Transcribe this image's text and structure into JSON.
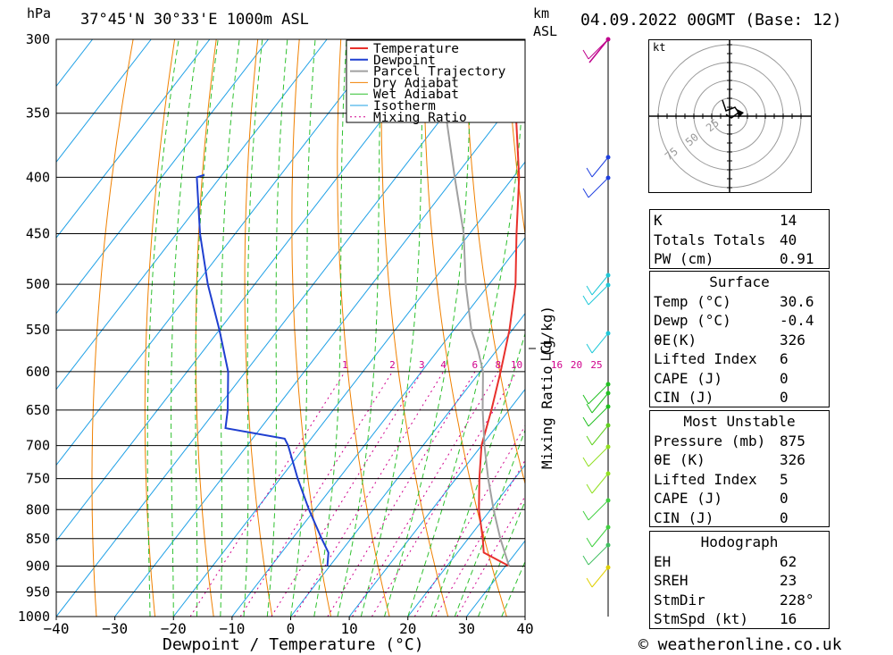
{
  "header": {
    "pressure_unit": "hPa",
    "location": "37°45'N  30°33'E  1000m  ASL",
    "km_label": "km",
    "asl_label": "ASL",
    "datetime": "04.09.2022  00GMT  (Base: 12)"
  },
  "footer": {
    "credit": "© weatheronline.co.uk"
  },
  "colors": {
    "temperature": "#e8302c",
    "dewpoint": "#1f3fd0",
    "parcel": "#a0a0a0",
    "dry_adiabat": "#f08000",
    "wet_adiabat": "#2ec02e",
    "isotherm": "#1ea0e6",
    "mixing_ratio": "#d0008c"
  },
  "chart_data": {
    "type": "line",
    "title": "",
    "xlabel": "Dewpoint / Temperature (°C)",
    "ylabel": "hPa",
    "right_label": "Mixing Ratio (g/kg)",
    "xlim": [
      -40,
      40
    ],
    "ylim": [
      1000,
      300
    ],
    "x_ticks": [
      -40,
      -30,
      -20,
      -10,
      0,
      10,
      20,
      30,
      40
    ],
    "pressure_levels": [
      300,
      350,
      400,
      450,
      500,
      550,
      600,
      650,
      700,
      750,
      800,
      850,
      900,
      950,
      1000
    ],
    "skew": "skew-T log-p",
    "legend": [
      "Temperature",
      "Dewpoint",
      "Parcel Trajectory",
      "Dry Adiabat",
      "Wet Adiabat",
      "Isotherm",
      "Mixing Ratio"
    ],
    "legend_position": "top-right",
    "mixing_ratio_labels": [
      "1",
      "2",
      "3",
      "4",
      "6",
      "8",
      "10",
      "16",
      "20",
      "25"
    ],
    "lcl_label": "LCL",
    "lcl_pressure": 575,
    "series": [
      {
        "name": "Temperature",
        "pressure": [
          900,
          875,
          850,
          800,
          750,
          700,
          650,
          600,
          550,
          500,
          450,
          400,
          350,
          300
        ],
        "values": [
          30.6,
          24.5,
          22.5,
          18,
          14,
          10,
          7,
          3.5,
          -0.5,
          -5.5,
          -12,
          -19,
          -28,
          -38
        ]
      },
      {
        "name": "Dewpoint",
        "pressure": [
          900,
          875,
          850,
          800,
          750,
          700,
          690,
          675,
          650,
          600,
          550,
          500,
          450,
          400,
          398
        ],
        "values": [
          -0.4,
          -2,
          -5,
          -11,
          -17,
          -23,
          -24.5,
          -36,
          -38,
          -43,
          -50,
          -58,
          -66,
          -74,
          -73
        ]
      },
      {
        "name": "Parcel Trajectory",
        "pressure": [
          900,
          850,
          800,
          750,
          700,
          650,
          600,
          575,
          550,
          500,
          450,
          400,
          350,
          300
        ],
        "values": [
          30.6,
          25.5,
          20.5,
          15.5,
          10.5,
          5.5,
          0.5,
          -3,
          -7,
          -14,
          -21,
          -30,
          -40,
          -50
        ]
      }
    ]
  },
  "hodograph": {
    "unit": "kt",
    "rings": [
      "25",
      "50",
      "75"
    ]
  },
  "stats": {
    "indices": [
      {
        "label": "K",
        "value": "14"
      },
      {
        "label": "Totals Totals",
        "value": "40"
      },
      {
        "label": "PW (cm)",
        "value": "0.91"
      }
    ],
    "surface": {
      "title": "Surface",
      "rows": [
        {
          "label": "Temp (°C)",
          "value": "30.6"
        },
        {
          "label": "Dewp (°C)",
          "value": "-0.4"
        },
        {
          "label": "θE(K)",
          "value": "326"
        },
        {
          "label": "Lifted Index",
          "value": "6"
        },
        {
          "label": "CAPE (J)",
          "value": "0"
        },
        {
          "label": "CIN (J)",
          "value": "0"
        }
      ]
    },
    "most_unstable": {
      "title": "Most Unstable",
      "rows": [
        {
          "label": "Pressure (mb)",
          "value": "875"
        },
        {
          "label": "θE (K)",
          "value": "326"
        },
        {
          "label": "Lifted Index",
          "value": "5"
        },
        {
          "label": "CAPE (J)",
          "value": "0"
        },
        {
          "label": "CIN (J)",
          "value": "0"
        }
      ]
    },
    "hodograph_box": {
      "title": "Hodograph",
      "rows": [
        {
          "label": "EH",
          "value": "62"
        },
        {
          "label": "SREH",
          "value": "23"
        },
        {
          "label": "StmDir",
          "value": "228°"
        },
        {
          "label": "StmSpd (kt)",
          "value": "16"
        }
      ]
    }
  }
}
